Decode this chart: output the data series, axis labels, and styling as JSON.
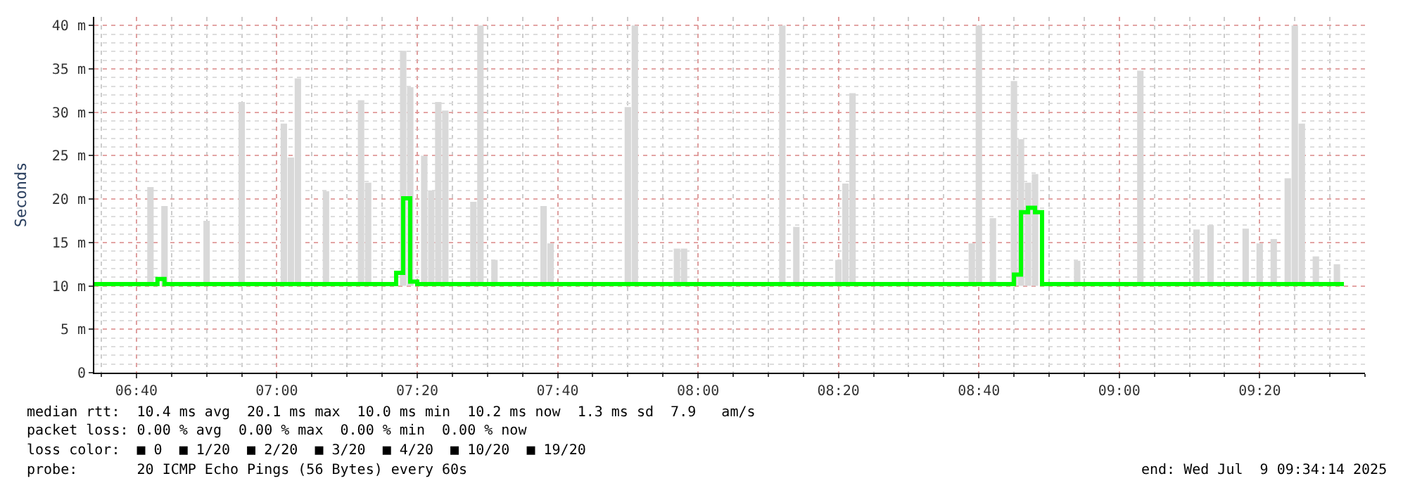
{
  "chart_data": {
    "type": "step",
    "ylabel": "Seconds",
    "xlim": [
      "2025-07-09T06:34",
      "2025-07-09T09:35"
    ],
    "xticks": [
      {
        "value": "2025-07-09T06:40",
        "label": "06:40"
      },
      {
        "value": "2025-07-09T07:00",
        "label": "07:00"
      },
      {
        "value": "2025-07-09T07:20",
        "label": "07:20"
      },
      {
        "value": "2025-07-09T07:40",
        "label": "07:40"
      },
      {
        "value": "2025-07-09T08:00",
        "label": "08:00"
      },
      {
        "value": "2025-07-09T08:20",
        "label": "08:20"
      },
      {
        "value": "2025-07-09T08:40",
        "label": "08:40"
      },
      {
        "value": "2025-07-09T09:00",
        "label": "09:00"
      },
      {
        "value": "2025-07-09T09:20",
        "label": "09:20"
      }
    ],
    "ylim": [
      0,
      41
    ],
    "yticks": [
      0,
      {
        "value": 5,
        "label": "5 m"
      },
      {
        "value": 10,
        "label": "10 m"
      },
      {
        "value": 15,
        "label": "15 m"
      },
      {
        "value": 20,
        "label": "20 m"
      },
      {
        "value": 25,
        "label": "25 m"
      },
      {
        "value": 30,
        "label": "30 m"
      },
      {
        "value": 35,
        "label": "35 m"
      },
      {
        "value": 40,
        "label": "40 m"
      }
    ],
    "grid": true,
    "legend": false,
    "series": [
      {
        "type": "bar",
        "color": "#d9d9d9",
        "x": [
          "2025-07-09T06:42",
          "2025-07-09T06:44",
          "2025-07-09T06:50",
          "2025-07-09T06:55",
          "2025-07-09T07:01",
          "2025-07-09T07:02",
          "2025-07-09T07:03",
          "2025-07-09T07:07",
          "2025-07-09T07:12",
          "2025-07-09T07:13",
          "2025-07-09T07:18",
          "2025-07-09T07:19",
          "2025-07-09T07:21",
          "2025-07-09T07:22",
          "2025-07-09T07:23",
          "2025-07-09T07:24",
          "2025-07-09T07:28",
          "2025-07-09T07:29",
          "2025-07-09T07:31",
          "2025-07-09T07:38",
          "2025-07-09T07:39",
          "2025-07-09T07:50",
          "2025-07-09T07:51",
          "2025-07-09T07:57",
          "2025-07-09T07:58",
          "2025-07-09T08:12",
          "2025-07-09T08:14",
          "2025-07-09T08:20",
          "2025-07-09T08:21",
          "2025-07-09T08:22",
          "2025-07-09T08:39",
          "2025-07-09T08:40",
          "2025-07-09T08:42",
          "2025-07-09T08:45",
          "2025-07-09T08:46",
          "2025-07-09T08:47",
          "2025-07-09T08:48",
          "2025-07-09T08:54",
          "2025-07-09T09:03",
          "2025-07-09T09:11",
          "2025-07-09T09:13",
          "2025-07-09T09:18",
          "2025-07-09T09:20",
          "2025-07-09T09:22",
          "2025-07-09T09:24",
          "2025-07-09T09:25",
          "2025-07-09T09:26",
          "2025-07-09T09:28",
          "2025-07-09T09:31"
        ],
        "base": [
          10,
          10,
          10,
          10,
          10,
          10,
          10,
          10,
          10,
          10,
          10,
          10,
          10,
          10,
          10,
          10,
          10,
          10,
          10,
          10,
          10,
          10,
          10,
          10,
          10,
          10,
          10,
          10,
          10,
          10,
          10,
          10,
          10,
          10,
          10,
          10,
          10,
          10,
          10,
          10,
          10,
          10,
          10,
          10,
          10,
          10,
          10,
          10,
          10
        ],
        "values": [
          11.4,
          9.2,
          7.5,
          21.2,
          18.7,
          14.8,
          23.9,
          10.9,
          21.4,
          11.9,
          27.1,
          22.9,
          15,
          11,
          21.2,
          20.2,
          9.7,
          30,
          3,
          9.2,
          4.9,
          20.6,
          30,
          4.3,
          4.3,
          30,
          6.8,
          3,
          11.8,
          22.2,
          4.9,
          30,
          7.8,
          23.6,
          16.9,
          11.9,
          12.9,
          2.9,
          24.8,
          6.5,
          7,
          6.6,
          4.9,
          5.4,
          12.4,
          30,
          18.7,
          3.4,
          2.5
        ]
      },
      {
        "color": "#00ff00",
        "x": [
          "2025-07-09T06:34",
          "2025-07-09T06:42",
          "2025-07-09T06:43",
          "2025-07-09T06:44",
          "2025-07-09T07:16",
          "2025-07-09T07:17",
          "2025-07-09T07:18",
          "2025-07-09T07:19",
          "2025-07-09T07:20",
          "2025-07-09T08:44",
          "2025-07-09T08:45",
          "2025-07-09T08:46",
          "2025-07-09T08:47",
          "2025-07-09T08:48",
          "2025-07-09T08:49",
          "2025-07-09T09:32"
        ],
        "values": [
          10.2,
          10.2,
          10.8,
          10.2,
          10.2,
          11.5,
          20.1,
          10.5,
          10.2,
          10.2,
          11.3,
          18.5,
          19,
          18.5,
          10.2,
          10.2
        ]
      }
    ],
    "annotations": [
      "median rtt:  10.4 ms avg  20.1 ms max  10.0 ms min  10.2 ms now  1.3 ms sd  7.9   am/s",
      "packet loss: 0.00 % avg  0.00 % max  0.00 % min  0.00 % now",
      "loss color:  ■ 0  ■ 1/20  ■ 2/20  ■ 3/20  ■ 4/20  ■ 10/20  ■ 19/20",
      "probe:       20 ICMP Echo Pings (56 Bytes) every 60s",
      "end: Wed Jul  9 09:34:14 2025"
    ]
  }
}
